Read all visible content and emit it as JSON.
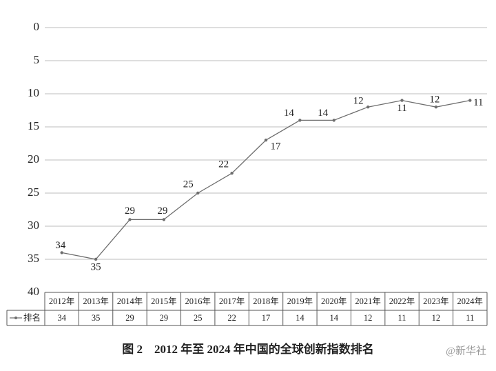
{
  "chart_data": {
    "type": "line",
    "title": "图 2　2012 年至 2024 年中国的全球创新指数排名",
    "watermark": "@新华社",
    "categories": [
      "2012年",
      "2013年",
      "2014年",
      "2015年",
      "2016年",
      "2017年",
      "2018年",
      "2019年",
      "2020年",
      "2021年",
      "2022年",
      "2023年",
      "2024年"
    ],
    "series": [
      {
        "name": "排名",
        "color": "#6e6e6e",
        "values": [
          34,
          35,
          29,
          29,
          25,
          22,
          17,
          14,
          14,
          12,
          11,
          12,
          11
        ]
      }
    ],
    "ylim": [
      0,
      40
    ],
    "yticks": [
      0,
      5,
      10,
      15,
      20,
      25,
      30,
      35,
      40
    ],
    "y_inverted": true,
    "grid": true,
    "data_table": true
  }
}
